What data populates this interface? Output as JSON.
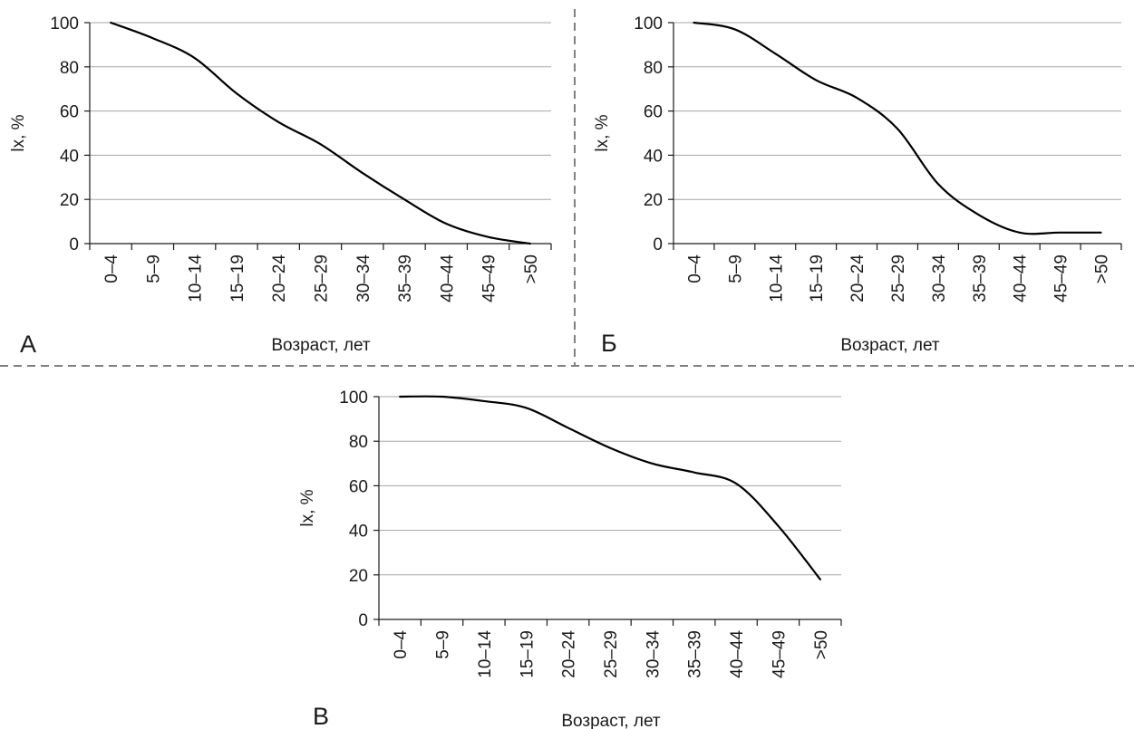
{
  "chart_data": [
    {
      "type": "line",
      "panel_label": "А",
      "categories": [
        "0–4",
        "5–9",
        "10–14",
        "15–19",
        "20–24",
        "25–29",
        "30–34",
        "35–39",
        "40–44",
        "45–49",
        ">50"
      ],
      "values": [
        100,
        93,
        84,
        68,
        55,
        45,
        32,
        20,
        9,
        3,
        0
      ],
      "xlabel": "Возраст, лет",
      "ylabel": "lx, %",
      "ylim": [
        0,
        100
      ],
      "yticks": [
        0,
        20,
        40,
        60,
        80,
        100
      ],
      "grid": true
    },
    {
      "type": "line",
      "panel_label": "Б",
      "categories": [
        "0–4",
        "5–9",
        "10–14",
        "15–19",
        "20–24",
        "25–29",
        "30–34",
        "35–39",
        "40–44",
        "45–49",
        ">50"
      ],
      "values": [
        100,
        97,
        86,
        74,
        66,
        52,
        27,
        13,
        5,
        5,
        5
      ],
      "xlabel": "Возраст, лет",
      "ylabel": "lx, %",
      "ylim": [
        0,
        100
      ],
      "yticks": [
        0,
        20,
        40,
        60,
        80,
        100
      ],
      "grid": true
    },
    {
      "type": "line",
      "panel_label": "В",
      "categories": [
        "0–4",
        "5–9",
        "10–14",
        "15–19",
        "20–24",
        "25–29",
        "30–34",
        "35–39",
        "40–44",
        "45–49",
        ">50"
      ],
      "values": [
        100,
        100,
        98,
        95,
        86,
        77,
        70,
        66,
        61,
        42,
        18
      ],
      "xlabel": "Возраст, лет",
      "ylabel": "lx, %",
      "ylim": [
        0,
        100
      ],
      "yticks": [
        0,
        20,
        40,
        60,
        80,
        100
      ],
      "grid": true
    }
  ],
  "colors": {
    "line": "#000000",
    "grid": "#a6a6a6",
    "axis": "#1a1a1a",
    "separator": "#808080"
  }
}
